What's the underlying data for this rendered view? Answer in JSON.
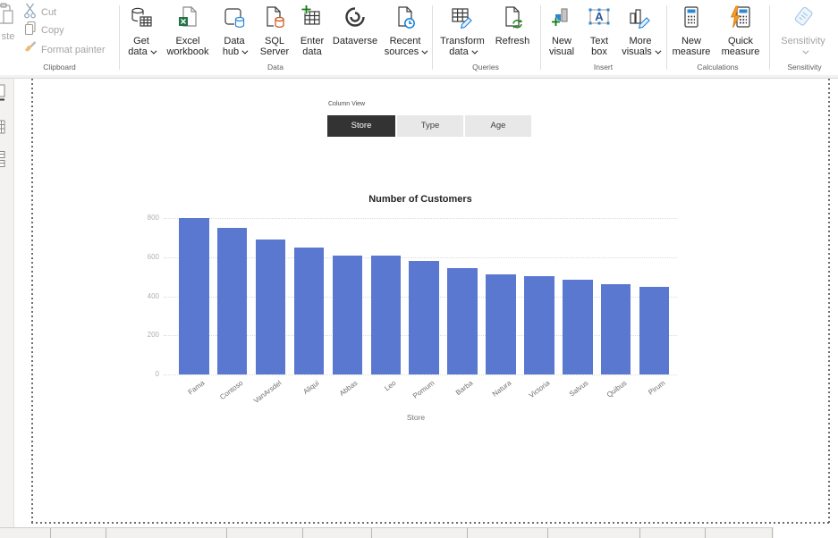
{
  "ribbon": {
    "groups": {
      "clipboard": {
        "label": "Clipboard",
        "paste_label": "ste",
        "items": [
          {
            "id": "cut",
            "label": "Cut"
          },
          {
            "id": "copy",
            "label": "Copy"
          },
          {
            "id": "format-painter",
            "label": "Format painter"
          }
        ]
      },
      "data": {
        "label": "Data",
        "items": [
          {
            "id": "get-data",
            "line1": "Get",
            "line2": "data",
            "dropdown": true
          },
          {
            "id": "excel-workbook",
            "line1": "Excel",
            "line2": "workbook"
          },
          {
            "id": "data-hub",
            "line1": "Data",
            "line2": "hub",
            "dropdown": true
          },
          {
            "id": "sql-server",
            "line1": "SQL",
            "line2": "Server"
          },
          {
            "id": "enter-data",
            "line1": "Enter",
            "line2": "data"
          },
          {
            "id": "dataverse",
            "line1": "Dataverse",
            "line2": ""
          },
          {
            "id": "recent-sources",
            "line1": "Recent",
            "line2": "sources",
            "dropdown": true
          }
        ]
      },
      "queries": {
        "label": "Queries",
        "items": [
          {
            "id": "transform-data",
            "line1": "Transform",
            "line2": "data",
            "dropdown": true
          },
          {
            "id": "refresh",
            "line1": "Refresh",
            "line2": ""
          }
        ]
      },
      "insert": {
        "label": "Insert",
        "items": [
          {
            "id": "new-visual",
            "line1": "New",
            "line2": "visual"
          },
          {
            "id": "text-box",
            "line1": "Text",
            "line2": "box"
          },
          {
            "id": "more-visuals",
            "line1": "More",
            "line2": "visuals",
            "dropdown": true
          }
        ]
      },
      "calculations": {
        "label": "Calculations",
        "items": [
          {
            "id": "new-measure",
            "line1": "New",
            "line2": "measure"
          },
          {
            "id": "quick-measure",
            "line1": "Quick",
            "line2": "measure"
          }
        ]
      },
      "sensitivity": {
        "label": "Sensitivity",
        "items": [
          {
            "id": "sensitivity",
            "line1": "Sensitivity",
            "line2": "",
            "dropdown": true,
            "disabled": true
          }
        ]
      }
    }
  },
  "slicer": {
    "title": "Column View",
    "options": [
      {
        "label": "Store",
        "selected": true
      },
      {
        "label": "Type",
        "selected": false
      },
      {
        "label": "Age",
        "selected": false
      }
    ]
  },
  "chart_data": {
    "type": "bar",
    "title": "Number of Customers",
    "categories": [
      "Fama",
      "Contoso",
      "VanArsdel",
      "Aliqui",
      "Abbas",
      "Leo",
      "Pomum",
      "Barba",
      "Natura",
      "Victoria",
      "Salvus",
      "Quibus",
      "Pirum"
    ],
    "values": [
      800,
      750,
      690,
      648,
      610,
      608,
      579,
      544,
      514,
      504,
      485,
      463,
      447
    ],
    "xlabel": "Store",
    "ylabel": "",
    "ylim": [
      0,
      800
    ],
    "yticks": [
      0,
      200,
      400,
      600,
      800
    ],
    "grid": "dotted horizontal",
    "legend": "none"
  },
  "colors": {
    "bar": "#5b78d1",
    "selected_slicer_bg": "#333333",
    "selected_slicer_text": "#ffffff",
    "unselected_slicer_bg": "#e8e8e8",
    "unselected_slicer_text": "#404040",
    "accent_blue": "#2b88d8",
    "accent_green": "#107c10",
    "accent_orange": "#ca5010",
    "excel_green": "#217346",
    "disabled_text": "#a6a4a2"
  }
}
